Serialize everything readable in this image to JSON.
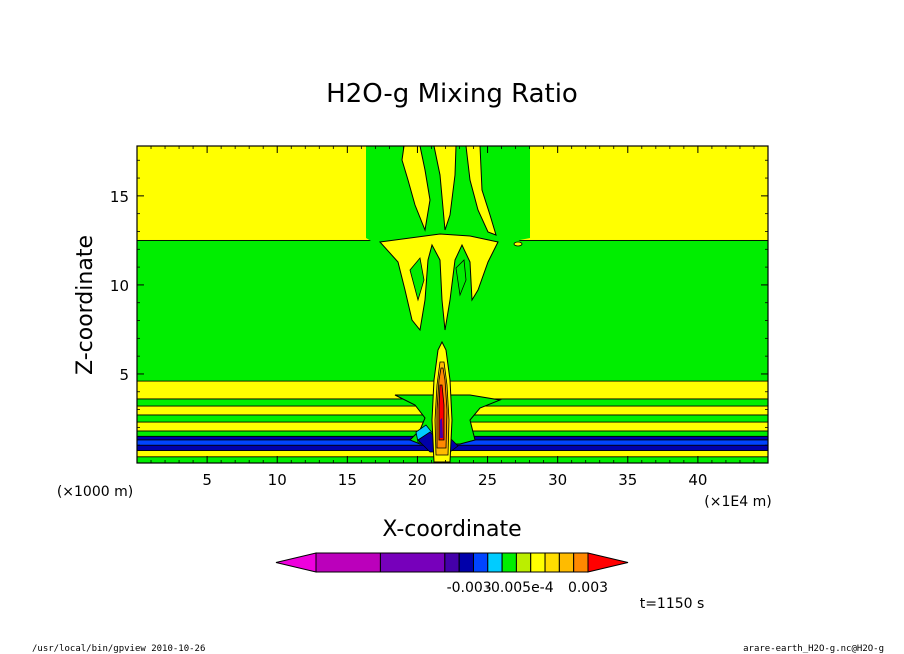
{
  "chart_data": {
    "type": "heatmap",
    "title": "H2O-g Mixing Ratio",
    "xlabel": "X-coordinate",
    "ylabel": "Z-coordinate",
    "x_unit": "(×1E4 m)",
    "y_unit": "(×1000 m)",
    "xlim": [
      0,
      45
    ],
    "ylim": [
      0,
      17.8
    ],
    "x_ticks": [
      5,
      10,
      15,
      20,
      25,
      30,
      35,
      40
    ],
    "y_ticks": [
      5,
      10,
      15
    ],
    "grid": false,
    "colorbar": {
      "orientation": "horizontal",
      "colors": [
        "#ee00dd",
        "#bb00bb",
        "#7700bb",
        "#4400aa",
        "#0000aa",
        "#0044ff",
        "#00ccff",
        "#00ee00",
        "#bbee00",
        "#ffff00",
        "#ffdd00",
        "#ffbb00",
        "#ff8800",
        "#ff0000"
      ],
      "tick_labels": [
        "-0.003",
        "-0.005e-4",
        "0.003"
      ]
    },
    "time_label": "t=1150 s",
    "bands": [
      {
        "z0": 0.0,
        "z1": 0.35,
        "color": "#00ee00"
      },
      {
        "z0": 0.35,
        "z1": 0.7,
        "color": "#ffff00"
      },
      {
        "z0": 0.7,
        "z1": 1.0,
        "color": "#0000aa"
      },
      {
        "z0": 1.0,
        "z1": 1.3,
        "color": "#0044ff"
      },
      {
        "z0": 1.3,
        "z1": 1.5,
        "color": "#0000aa"
      },
      {
        "z0": 1.5,
        "z1": 1.8,
        "color": "#00ee00"
      },
      {
        "z0": 1.8,
        "z1": 2.3,
        "color": "#ffff00"
      },
      {
        "z0": 2.3,
        "z1": 2.7,
        "color": "#00ee00"
      },
      {
        "z0": 2.7,
        "z1": 3.2,
        "color": "#ffff00"
      },
      {
        "z0": 3.2,
        "z1": 3.6,
        "color": "#00ee00"
      },
      {
        "z0": 3.6,
        "z1": 4.6,
        "color": "#ffff00"
      },
      {
        "z0": 4.6,
        "z1": 12.5,
        "color": "#00ee00"
      },
      {
        "z0": 12.5,
        "z1": 17.8,
        "color": "#ffff00"
      }
    ]
  },
  "footer": {
    "left": "/usr/local/bin/gpview  2010-10-26",
    "right": "arare-earth_H2O-g.nc@H2O-g"
  }
}
